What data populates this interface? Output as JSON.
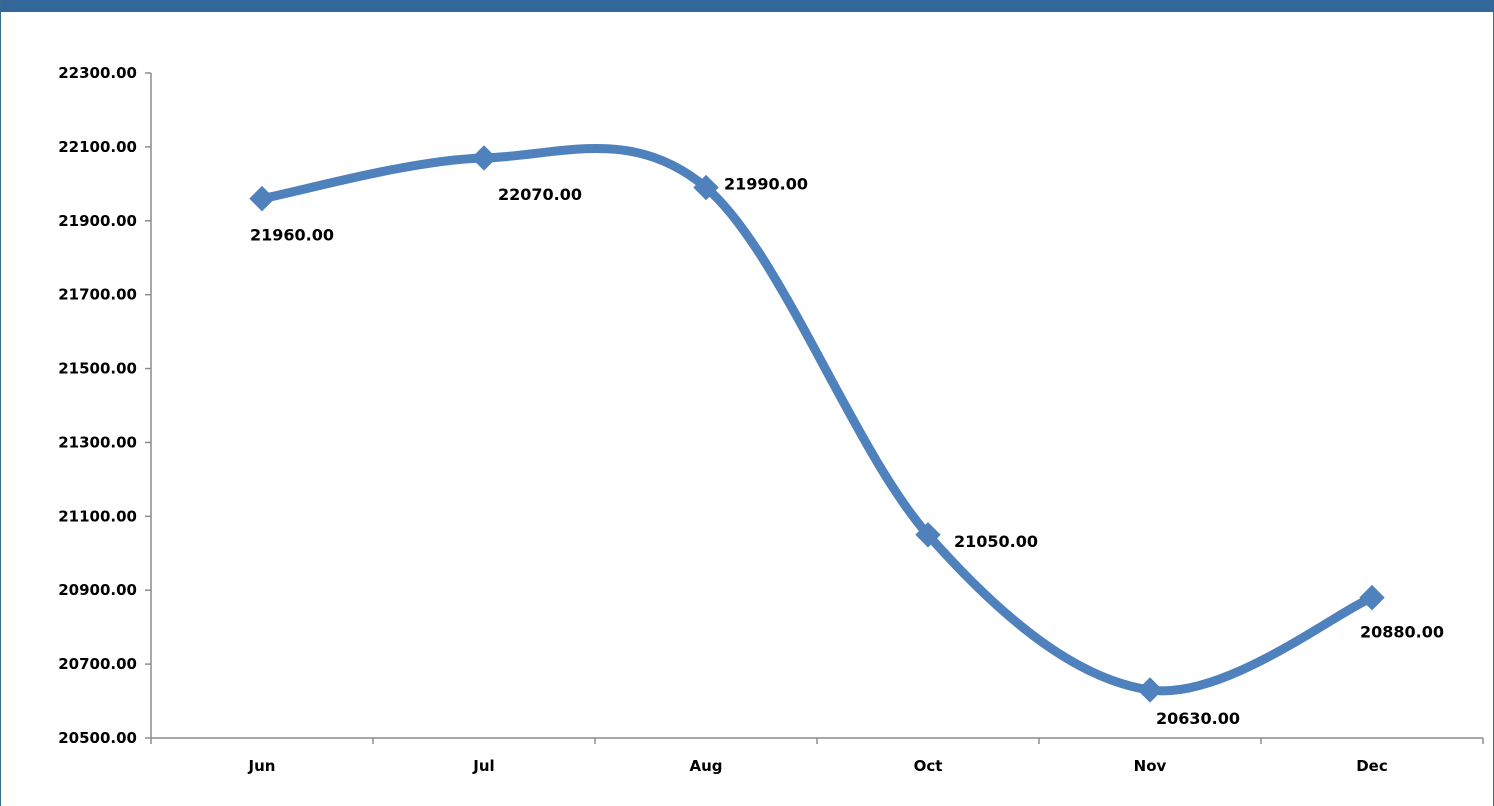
{
  "theme": {
    "line_color": "#4f81bd",
    "header_bar_color": "#336699"
  },
  "chart_data": {
    "type": "line",
    "smooth": true,
    "title": "",
    "xlabel": "",
    "ylabel": "",
    "categories": [
      "Jun",
      "Jul",
      "Aug",
      "Oct",
      "Nov",
      "Dec"
    ],
    "series": [
      {
        "values": [
          21960,
          22070,
          21990,
          21050,
          20630,
          20880
        ],
        "labels": [
          "21960.00",
          "22070.00",
          "21990.00",
          "21050.00",
          "20630.00",
          "20880.00"
        ],
        "marker": "diamond"
      }
    ],
    "ylim": [
      20500,
      22300
    ],
    "yticks": [
      20500,
      20700,
      20900,
      21100,
      21300,
      21500,
      21700,
      21900,
      22100,
      22300
    ],
    "ytick_labels": [
      "20500.00",
      "20700.00",
      "20900.00",
      "21100.00",
      "21300.00",
      "21500.00",
      "21700.00",
      "21900.00",
      "22100.00",
      "22300.00"
    ],
    "legend": "none",
    "grid": false
  }
}
